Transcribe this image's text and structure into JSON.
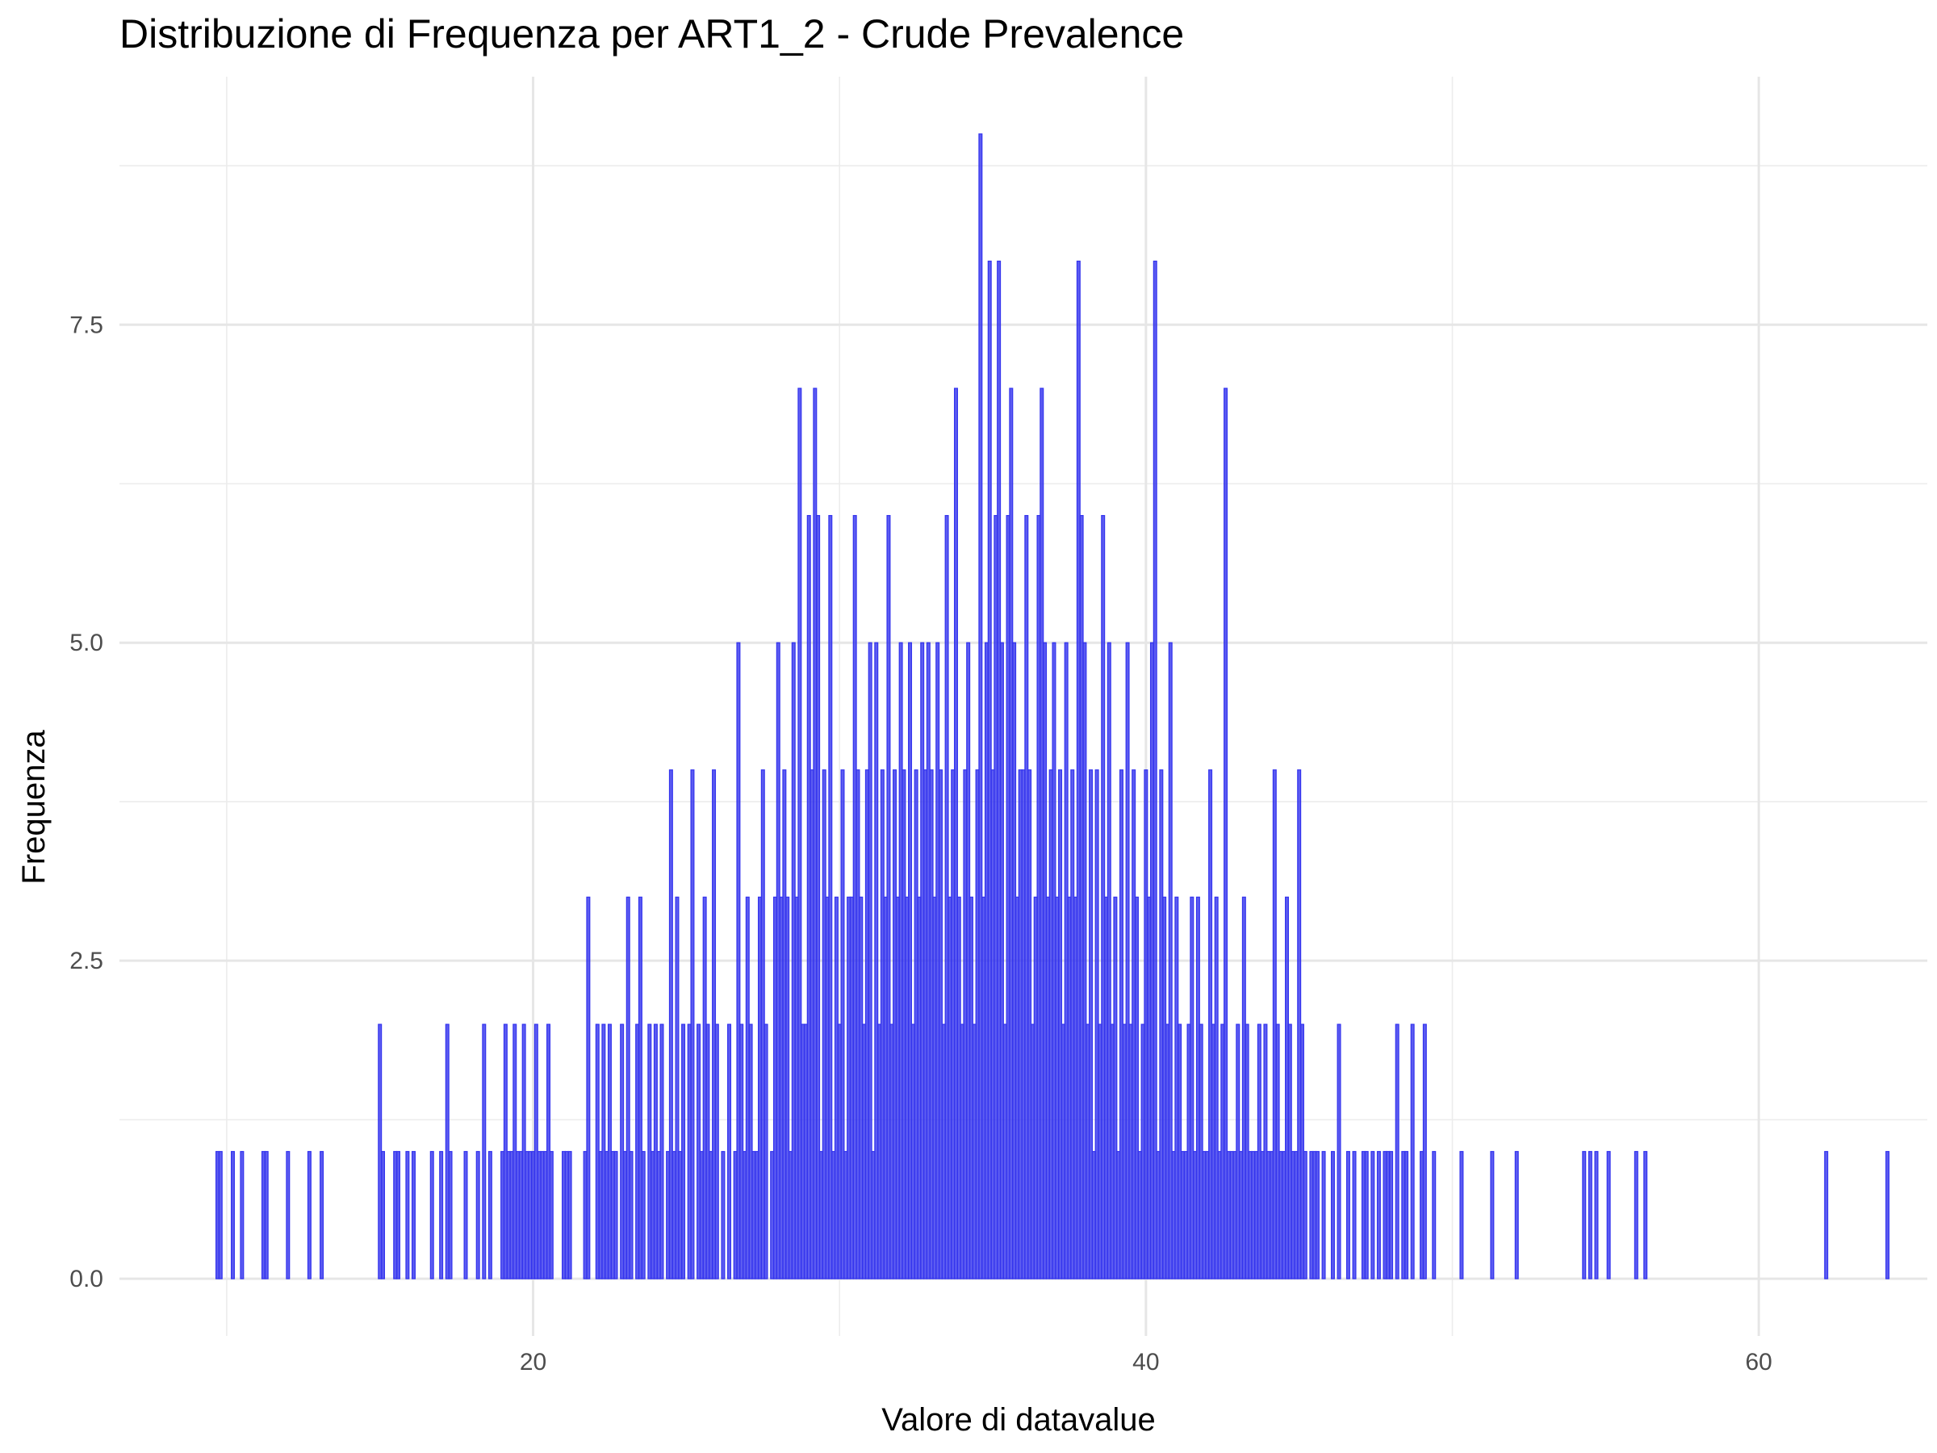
{
  "chart_data": {
    "type": "bar",
    "title": "Distribuzione di Frequenza per ART1_2 - Crude Prevalence",
    "xlabel": "Valore di datavalue",
    "ylabel": "Frequenza",
    "xlim": [
      6.5,
      65.5
    ],
    "ylim": [
      -0.45,
      9.45
    ],
    "x_ticks": [
      20,
      40,
      60
    ],
    "x_tick_labels": [
      "20",
      "40",
      "60"
    ],
    "y_ticks": [
      0,
      2.5,
      5,
      7.5
    ],
    "y_tick_labels": [
      "0.0",
      "2.5",
      "5.0",
      "7.5"
    ],
    "grid": true,
    "bar_color": "#3333ee",
    "bar_width": 0.1,
    "x": [
      9.7,
      9.8,
      10.2,
      10.5,
      11.2,
      11.3,
      12.0,
      12.7,
      13.1,
      15.0,
      15.1,
      15.5,
      15.6,
      15.9,
      16.1,
      16.7,
      17.0,
      17.2,
      17.3,
      17.8,
      18.2,
      18.4,
      18.6,
      19.0,
      19.1,
      19.2,
      19.3,
      19.4,
      19.5,
      19.6,
      19.7,
      19.8,
      19.9,
      20.0,
      20.1,
      20.2,
      20.3,
      20.4,
      20.5,
      20.6,
      21.0,
      21.1,
      21.2,
      21.7,
      21.8,
      22.1,
      22.2,
      22.3,
      22.4,
      22.5,
      22.6,
      22.7,
      22.9,
      23.0,
      23.1,
      23.2,
      23.4,
      23.5,
      23.6,
      23.8,
      23.9,
      24.0,
      24.1,
      24.2,
      24.4,
      24.5,
      24.6,
      24.7,
      24.8,
      24.9,
      25.1,
      25.2,
      25.4,
      25.5,
      25.6,
      25.7,
      25.8,
      25.9,
      26.0,
      26.2,
      26.4,
      26.6,
      26.7,
      26.8,
      26.9,
      27.0,
      27.1,
      27.2,
      27.3,
      27.4,
      27.5,
      27.6,
      27.8,
      27.9,
      28.0,
      28.1,
      28.2,
      28.3,
      28.4,
      28.5,
      28.6,
      28.7,
      28.8,
      28.9,
      29.0,
      29.1,
      29.2,
      29.3,
      29.4,
      29.5,
      29.6,
      29.7,
      29.8,
      29.9,
      30.0,
      30.1,
      30.2,
      30.3,
      30.4,
      30.5,
      30.6,
      30.7,
      30.8,
      30.9,
      31.0,
      31.1,
      31.2,
      31.3,
      31.4,
      31.5,
      31.6,
      31.7,
      31.8,
      31.9,
      32.0,
      32.1,
      32.2,
      32.3,
      32.4,
      32.5,
      32.6,
      32.7,
      32.8,
      32.9,
      33.0,
      33.1,
      33.2,
      33.3,
      33.4,
      33.5,
      33.6,
      33.7,
      33.8,
      33.9,
      34.0,
      34.1,
      34.2,
      34.3,
      34.4,
      34.5,
      34.6,
      34.7,
      34.8,
      34.9,
      35.0,
      35.1,
      35.2,
      35.3,
      35.4,
      35.5,
      35.6,
      35.7,
      35.8,
      35.9,
      36.0,
      36.1,
      36.2,
      36.3,
      36.4,
      36.5,
      36.6,
      36.7,
      36.8,
      36.9,
      37.0,
      37.1,
      37.2,
      37.3,
      37.4,
      37.5,
      37.6,
      37.7,
      37.8,
      37.9,
      38.0,
      38.1,
      38.2,
      38.3,
      38.4,
      38.5,
      38.6,
      38.7,
      38.8,
      38.9,
      39.0,
      39.1,
      39.2,
      39.3,
      39.4,
      39.5,
      39.6,
      39.7,
      39.8,
      39.9,
      40.0,
      40.1,
      40.2,
      40.3,
      40.4,
      40.5,
      40.6,
      40.7,
      40.8,
      40.9,
      41.0,
      41.1,
      41.2,
      41.3,
      41.4,
      41.5,
      41.6,
      41.7,
      41.8,
      41.9,
      42.0,
      42.1,
      42.2,
      42.3,
      42.4,
      42.5,
      42.6,
      42.7,
      42.8,
      42.9,
      43.0,
      43.1,
      43.2,
      43.3,
      43.4,
      43.5,
      43.6,
      43.7,
      43.8,
      43.9,
      44.0,
      44.1,
      44.2,
      44.3,
      44.4,
      44.5,
      44.6,
      44.7,
      44.8,
      44.9,
      45.0,
      45.1,
      45.2,
      45.4,
      45.5,
      45.6,
      45.8,
      46.1,
      46.3,
      46.6,
      46.8,
      47.1,
      47.2,
      47.4,
      47.6,
      47.8,
      47.9,
      48.0,
      48.2,
      48.4,
      48.5,
      48.7,
      49.0,
      49.1,
      49.4,
      50.3,
      51.3,
      52.1,
      54.3,
      54.5,
      54.7,
      55.1,
      56.0,
      56.3,
      62.2,
      64.2
    ],
    "values": [
      1,
      1,
      1,
      1,
      1,
      1,
      1,
      1,
      1,
      2,
      1,
      1,
      1,
      1,
      1,
      1,
      1,
      2,
      1,
      1,
      1,
      2,
      1,
      1,
      2,
      1,
      1,
      2,
      1,
      1,
      2,
      1,
      1,
      1,
      2,
      1,
      1,
      1,
      2,
      1,
      1,
      1,
      1,
      1,
      3,
      2,
      1,
      2,
      1,
      2,
      1,
      1,
      2,
      1,
      3,
      1,
      2,
      3,
      1,
      2,
      1,
      2,
      1,
      2,
      1,
      4,
      1,
      3,
      1,
      2,
      2,
      4,
      2,
      1,
      3,
      2,
      1,
      4,
      2,
      1,
      2,
      1,
      5,
      2,
      1,
      3,
      2,
      1,
      1,
      3,
      4,
      2,
      1,
      3,
      5,
      3,
      4,
      3,
      1,
      5,
      3,
      7,
      2,
      2,
      6,
      4,
      7,
      6,
      1,
      4,
      3,
      6,
      1,
      3,
      2,
      4,
      1,
      3,
      3,
      6,
      4,
      3,
      2,
      4,
      5,
      1,
      5,
      2,
      4,
      3,
      6,
      2,
      4,
      3,
      5,
      4,
      3,
      5,
      2,
      4,
      3,
      5,
      4,
      5,
      4,
      3,
      5,
      4,
      2,
      6,
      3,
      4,
      7,
      3,
      2,
      4,
      5,
      3,
      2,
      4,
      9,
      3,
      5,
      8,
      4,
      6,
      8,
      5,
      2,
      6,
      7,
      5,
      3,
      4,
      4,
      6,
      4,
      2,
      3,
      6,
      7,
      5,
      3,
      4,
      5,
      3,
      4,
      2,
      5,
      3,
      4,
      3,
      8,
      6,
      5,
      2,
      4,
      1,
      4,
      2,
      6,
      3,
      5,
      2,
      3,
      1,
      4,
      2,
      5,
      2,
      4,
      3,
      1,
      2,
      4,
      3,
      5,
      8,
      1,
      4,
      3,
      2,
      5,
      1,
      3,
      2,
      1,
      1,
      2,
      3,
      1,
      3,
      2,
      1,
      1,
      4,
      2,
      3,
      1,
      2,
      7,
      1,
      1,
      1,
      2,
      1,
      3,
      2,
      1,
      1,
      1,
      2,
      1,
      2,
      1,
      1,
      4,
      2,
      1,
      1,
      3,
      2,
      1,
      1,
      4,
      2,
      1,
      1,
      1,
      1,
      1,
      1,
      2,
      1,
      1,
      1,
      1,
      1,
      1,
      1,
      1,
      1,
      2,
      1,
      1,
      2,
      1,
      2,
      1,
      1,
      1,
      1,
      1,
      1,
      1,
      1,
      1,
      1,
      1,
      1
    ]
  }
}
